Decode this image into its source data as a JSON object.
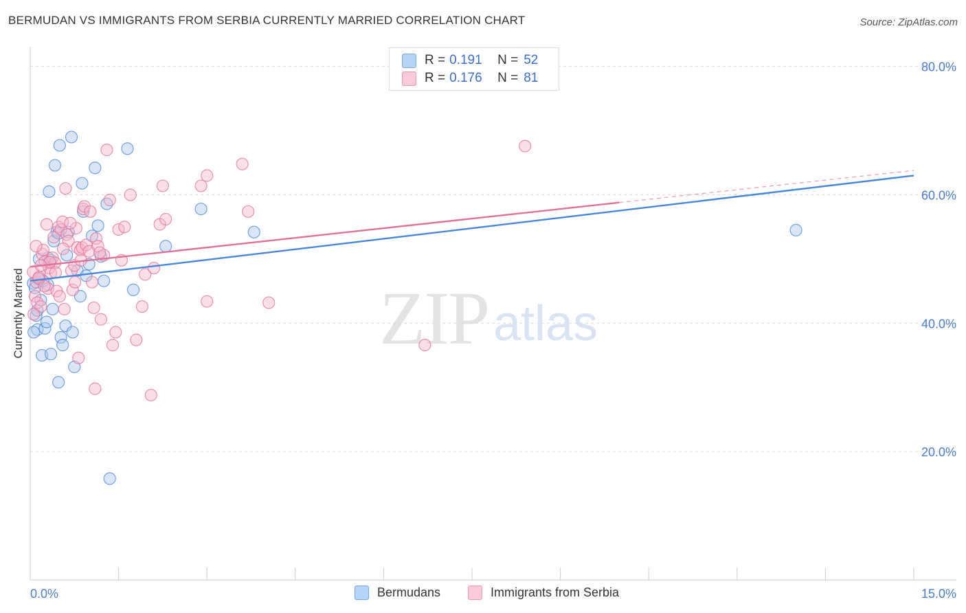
{
  "header": {
    "title": "BERMUDAN VS IMMIGRANTS FROM SERBIA CURRENTLY MARRIED CORRELATION CHART",
    "source": "Source: ZipAtlas.com"
  },
  "watermark": {
    "zip": "ZIP",
    "atlas": "atlas"
  },
  "legend": {
    "rows": [
      {
        "r_label": "R = ",
        "r_value": "0.191",
        "n_label": "N = ",
        "n_value": "52",
        "color": "#a8c8f0"
      },
      {
        "r_label": "R = ",
        "r_value": "0.176",
        "n_label": "N = ",
        "n_value": "81",
        "color": "#f6b8cc"
      }
    ]
  },
  "bottom_legend": {
    "items": [
      {
        "label": "Bermudans",
        "color": "#a8c8f0"
      },
      {
        "label": "Immigrants from Serbia",
        "color": "#f6b8cc"
      }
    ]
  },
  "chart_data": {
    "type": "scatter",
    "title": "BERMUDAN VS IMMIGRANTS FROM SERBIA CURRENTLY MARRIED CORRELATION CHART",
    "xlabel": "",
    "ylabel": "Currently Married",
    "xlim": [
      0,
      15
    ],
    "ylim": [
      0,
      82
    ],
    "x_tick_labels": [
      "0.0%",
      "15.0%"
    ],
    "y_ticks": [
      20,
      40,
      60,
      80
    ],
    "y_tick_labels": [
      "20.0%",
      "40.0%",
      "60.0%",
      "80.0%"
    ],
    "series": [
      {
        "name": "Bermudans",
        "color": "#4a86d8",
        "fill": "#a8c8f0",
        "trend": {
          "x0": 0,
          "y0": 46.6,
          "x1": 15,
          "y1": 63.0,
          "dashed_from": null
        },
        "points": [
          [
            0.05,
            46.2
          ],
          [
            0.08,
            45.5
          ],
          [
            0.1,
            41.2
          ],
          [
            0.12,
            39.0
          ],
          [
            0.15,
            50.0
          ],
          [
            0.2,
            35.0
          ],
          [
            0.25,
            39.2
          ],
          [
            0.28,
            40.2
          ],
          [
            0.3,
            46.0
          ],
          [
            0.32,
            60.5
          ],
          [
            0.35,
            35.2
          ],
          [
            0.38,
            42.2
          ],
          [
            0.4,
            52.8
          ],
          [
            0.42,
            64.6
          ],
          [
            0.45,
            54.2
          ],
          [
            0.48,
            30.8
          ],
          [
            0.5,
            67.7
          ],
          [
            0.52,
            37.8
          ],
          [
            0.55,
            36.6
          ],
          [
            0.6,
            39.6
          ],
          [
            0.65,
            54.2
          ],
          [
            0.7,
            69.0
          ],
          [
            0.72,
            38.6
          ],
          [
            0.75,
            33.2
          ],
          [
            0.8,
            48.2
          ],
          [
            0.85,
            44.2
          ],
          [
            0.88,
            61.8
          ],
          [
            0.95,
            47.4
          ],
          [
            1.0,
            49.2
          ],
          [
            1.05,
            53.6
          ],
          [
            1.1,
            64.2
          ],
          [
            1.15,
            55.2
          ],
          [
            1.2,
            50.4
          ],
          [
            1.25,
            46.6
          ],
          [
            1.3,
            58.6
          ],
          [
            1.35,
            15.8
          ],
          [
            1.65,
            67.2
          ],
          [
            1.75,
            45.2
          ],
          [
            2.3,
            52.0
          ],
          [
            2.9,
            57.8
          ],
          [
            3.8,
            54.2
          ],
          [
            13.0,
            54.5
          ],
          [
            0.22,
            46.6
          ],
          [
            0.18,
            43.6
          ],
          [
            0.62,
            50.6
          ],
          [
            0.35,
            49.8
          ],
          [
            0.9,
            57.4
          ],
          [
            0.06,
            38.6
          ],
          [
            0.15,
            46.9
          ],
          [
            0.48,
            54.0
          ],
          [
            0.3,
            50.2
          ],
          [
            0.12,
            42.0
          ]
        ]
      },
      {
        "name": "Immigrants from Serbia",
        "color": "#e0709a",
        "fill": "#f6b8cc",
        "trend": {
          "x0": 0,
          "y0": 48.8,
          "x1": 15,
          "y1": 63.8,
          "dashed_from": 10.0
        },
        "points": [
          [
            0.05,
            48.0
          ],
          [
            0.08,
            44.2
          ],
          [
            0.1,
            46.4
          ],
          [
            0.12,
            43.2
          ],
          [
            0.15,
            47.2
          ],
          [
            0.18,
            42.6
          ],
          [
            0.2,
            50.8
          ],
          [
            0.22,
            51.4
          ],
          [
            0.25,
            49.6
          ],
          [
            0.28,
            55.4
          ],
          [
            0.3,
            45.4
          ],
          [
            0.32,
            48.6
          ],
          [
            0.35,
            47.8
          ],
          [
            0.38,
            50.2
          ],
          [
            0.4,
            53.4
          ],
          [
            0.42,
            49.4
          ],
          [
            0.45,
            45.0
          ],
          [
            0.48,
            55.0
          ],
          [
            0.5,
            44.2
          ],
          [
            0.52,
            54.6
          ],
          [
            0.55,
            55.8
          ],
          [
            0.58,
            42.2
          ],
          [
            0.6,
            61.0
          ],
          [
            0.62,
            53.8
          ],
          [
            0.65,
            52.8
          ],
          [
            0.7,
            48.2
          ],
          [
            0.72,
            45.2
          ],
          [
            0.75,
            49.0
          ],
          [
            0.78,
            54.8
          ],
          [
            0.8,
            51.8
          ],
          [
            0.82,
            34.6
          ],
          [
            0.85,
            51.4
          ],
          [
            0.88,
            51.8
          ],
          [
            0.9,
            57.8
          ],
          [
            0.92,
            58.2
          ],
          [
            0.95,
            52.2
          ],
          [
            1.0,
            51.2
          ],
          [
            1.02,
            57.4
          ],
          [
            1.05,
            46.4
          ],
          [
            1.08,
            42.4
          ],
          [
            1.1,
            29.8
          ],
          [
            1.12,
            53.2
          ],
          [
            1.15,
            52.0
          ],
          [
            1.2,
            40.6
          ],
          [
            1.25,
            50.6
          ],
          [
            1.3,
            67.0
          ],
          [
            1.35,
            59.2
          ],
          [
            1.4,
            36.6
          ],
          [
            1.45,
            38.6
          ],
          [
            1.5,
            54.6
          ],
          [
            1.55,
            49.8
          ],
          [
            1.6,
            55.0
          ],
          [
            1.7,
            60.0
          ],
          [
            1.8,
            37.4
          ],
          [
            1.9,
            42.6
          ],
          [
            1.95,
            47.6
          ],
          [
            2.05,
            28.8
          ],
          [
            2.1,
            48.6
          ],
          [
            2.2,
            55.4
          ],
          [
            2.25,
            61.4
          ],
          [
            2.3,
            56.2
          ],
          [
            2.9,
            61.4
          ],
          [
            3.0,
            43.4
          ],
          [
            3.0,
            63.0
          ],
          [
            3.6,
            64.8
          ],
          [
            3.7,
            57.4
          ],
          [
            4.05,
            43.2
          ],
          [
            6.7,
            36.6
          ],
          [
            8.4,
            67.6
          ],
          [
            0.06,
            41.4
          ],
          [
            0.1,
            52.0
          ],
          [
            0.14,
            47.0
          ],
          [
            0.24,
            45.8
          ],
          [
            0.33,
            49.5
          ],
          [
            0.43,
            47.9
          ],
          [
            0.56,
            51.6
          ],
          [
            0.68,
            55.6
          ],
          [
            0.76,
            46.4
          ],
          [
            0.86,
            49.8
          ],
          [
            1.18,
            51.0
          ],
          [
            0.18,
            49.0
          ]
        ]
      }
    ]
  }
}
